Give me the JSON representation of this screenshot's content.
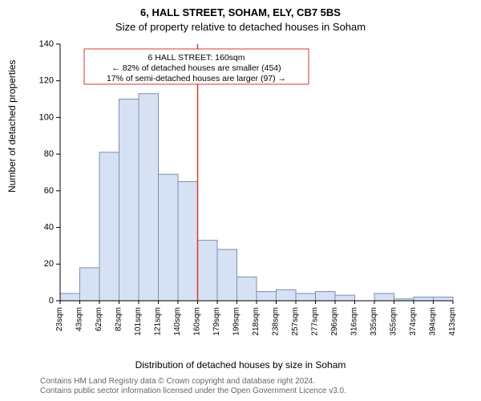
{
  "titles": {
    "line1": "6, HALL STREET, SOHAM, ELY, CB7 5BS",
    "line2": "Size of property relative to detached houses in Soham"
  },
  "axes": {
    "ylabel": "Number of detached properties",
    "xlabel": "Distribution of detached houses by size in Soham",
    "ylim": [
      0,
      140
    ],
    "yticks": [
      0,
      20,
      40,
      60,
      80,
      100,
      120,
      140
    ],
    "xticks": [
      "23sqm",
      "43sqm",
      "62sqm",
      "82sqm",
      "101sqm",
      "121sqm",
      "140sqm",
      "160sqm",
      "179sqm",
      "199sqm",
      "218sqm",
      "238sqm",
      "257sqm",
      "277sqm",
      "296sqm",
      "316sqm",
      "335sqm",
      "355sqm",
      "374sqm",
      "394sqm",
      "413sqm"
    ]
  },
  "chart": {
    "type": "histogram",
    "bar_fill": "#d6e1f4",
    "bar_stroke": "#7a8fb0",
    "values": [
      4,
      18,
      81,
      110,
      113,
      69,
      65,
      33,
      28,
      13,
      5,
      6,
      4,
      5,
      3,
      0,
      4,
      1,
      2,
      2
    ],
    "background": "#ffffff"
  },
  "marker": {
    "index": 7,
    "color": "#d33a2f"
  },
  "annotation": {
    "border": "#d33a2f",
    "bg": "#ffffff",
    "lines": [
      "6 HALL STREET: 160sqm",
      "← 82% of detached houses are smaller (454)",
      "17% of semi-detached houses are larger (97) →"
    ]
  },
  "footer": {
    "line1": "Contains HM Land Registry data © Crown copyright and database right 2024.",
    "line2": "Contains public sector information licensed under the Open Government Licence v3.0."
  }
}
